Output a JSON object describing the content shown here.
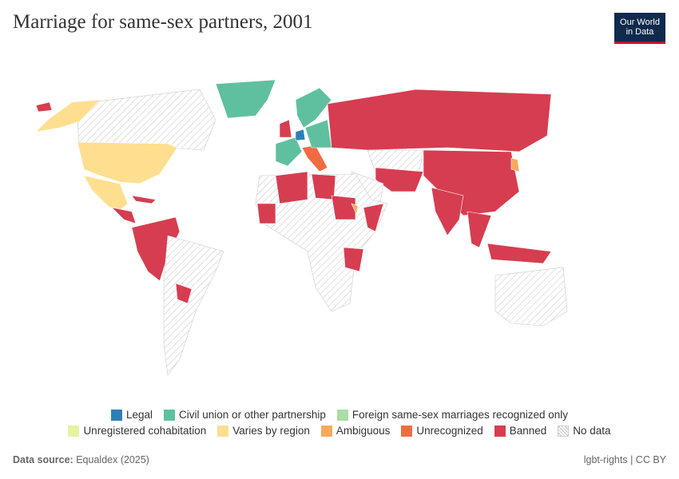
{
  "header": {
    "title": "Marriage for same-sex partners, 2001",
    "logo": [
      "Our World",
      "in Data"
    ]
  },
  "legend": {
    "rows": [
      [
        {
          "label": "Legal",
          "color": "#2c80b8"
        },
        {
          "label": "Civil union or other partnership",
          "color": "#5fc0a0"
        },
        {
          "label": "Foreign same-sex marriages recognized only",
          "color": "#abdda4"
        }
      ],
      [
        {
          "label": "Unregistered cohabitation",
          "color": "#e4f49f"
        },
        {
          "label": "Varies by region",
          "color": "#fddf8f"
        },
        {
          "label": "Ambiguous",
          "color": "#f9a85e"
        },
        {
          "label": "Unrecognized",
          "color": "#ef6c43"
        },
        {
          "label": "Banned",
          "color": "#d63d50"
        },
        {
          "label": "No data",
          "color": "hatch"
        }
      ]
    ]
  },
  "footer": {
    "source_label": "Data source:",
    "source": "Equaldex (2025)",
    "license": "lgbt-rights | CC BY"
  }
}
